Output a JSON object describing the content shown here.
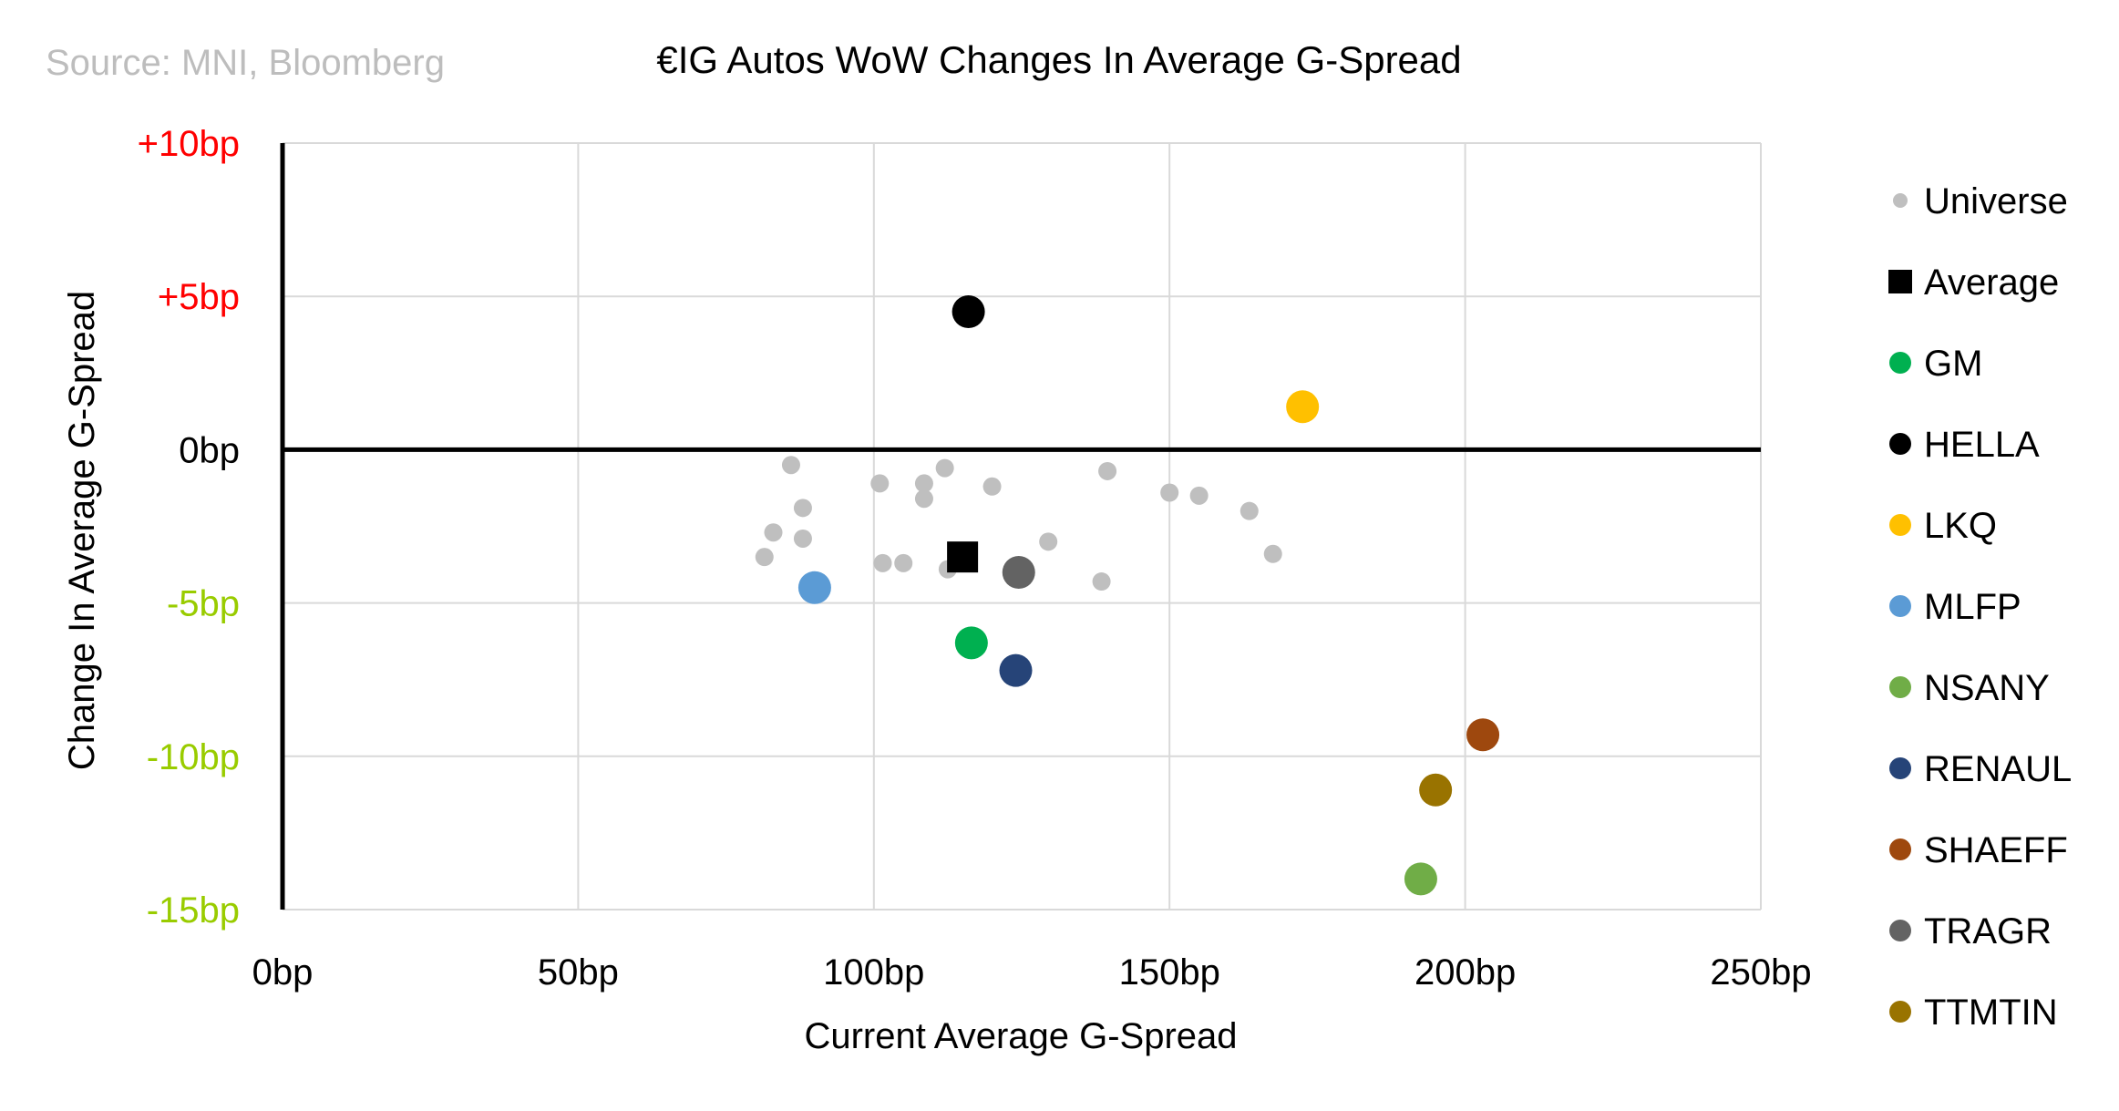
{
  "source": "Source: MNI, Bloomberg",
  "chart_data": {
    "type": "scatter",
    "title": "€IG Autos WoW Changes In Average G-Spread",
    "xlabel": "Current Average G-Spread",
    "ylabel": "Change In Average G-Spread",
    "xlim": [
      0,
      250
    ],
    "ylim": [
      -15,
      10
    ],
    "x_ticks": [
      {
        "value": 0,
        "label": "0bp"
      },
      {
        "value": 50,
        "label": "50bp"
      },
      {
        "value": 100,
        "label": "100bp"
      },
      {
        "value": 150,
        "label": "150bp"
      },
      {
        "value": 200,
        "label": "200bp"
      },
      {
        "value": 250,
        "label": "250bp"
      }
    ],
    "y_ticks": [
      {
        "value": 10,
        "label": "+10bp",
        "color": "#ff0000"
      },
      {
        "value": 5,
        "label": "+5bp",
        "color": "#ff0000"
      },
      {
        "value": 0,
        "label": "0bp",
        "color": "#000000"
      },
      {
        "value": -5,
        "label": "-5bp",
        "color": "#99cc00"
      },
      {
        "value": -10,
        "label": "-10bp",
        "color": "#99cc00"
      },
      {
        "value": -15,
        "label": "-15bp",
        "color": "#99cc00"
      }
    ],
    "grid": true,
    "legend_position": "right",
    "series": [
      {
        "name": "Universe",
        "color": "#bfbfbf",
        "marker": "small-circle",
        "points": [
          [
            86,
            -0.5
          ],
          [
            88,
            -1.9
          ],
          [
            83,
            -2.7
          ],
          [
            88,
            -2.9
          ],
          [
            81.5,
            -3.5
          ],
          [
            101,
            -1.1
          ],
          [
            108.5,
            -1.1
          ],
          [
            108.5,
            -1.6
          ],
          [
            112,
            -0.6
          ],
          [
            120,
            -1.2
          ],
          [
            101.5,
            -3.7
          ],
          [
            105,
            -3.7
          ],
          [
            112.5,
            -3.9
          ],
          [
            129.5,
            -3.0
          ],
          [
            139.5,
            -0.7
          ],
          [
            138.5,
            -4.3
          ],
          [
            150,
            -1.4
          ],
          [
            155,
            -1.5
          ],
          [
            163.5,
            -2.0
          ],
          [
            167.5,
            -3.4
          ]
        ]
      },
      {
        "name": "Average",
        "color": "#000000",
        "marker": "square",
        "points": [
          [
            115,
            -3.5
          ]
        ]
      },
      {
        "name": "GM",
        "color": "#00b050",
        "marker": "circle",
        "points": [
          [
            116.5,
            -6.3
          ]
        ]
      },
      {
        "name": "HELLA",
        "color": "#000000",
        "marker": "circle",
        "points": [
          [
            116,
            4.5
          ]
        ]
      },
      {
        "name": "LKQ",
        "color": "#ffc000",
        "marker": "circle",
        "points": [
          [
            172.5,
            1.4
          ]
        ]
      },
      {
        "name": "MLFP",
        "color": "#5b9bd5",
        "marker": "circle",
        "points": [
          [
            90,
            -4.5
          ]
        ]
      },
      {
        "name": "NSANY",
        "color": "#70ad47",
        "marker": "circle",
        "points": [
          [
            192.5,
            -14.0
          ]
        ]
      },
      {
        "name": "RENAUL",
        "color": "#264478",
        "marker": "circle",
        "points": [
          [
            124,
            -7.2
          ]
        ]
      },
      {
        "name": "SHAEFF",
        "color": "#9e480e",
        "marker": "circle",
        "points": [
          [
            203,
            -9.3
          ]
        ]
      },
      {
        "name": "TRAGR",
        "color": "#636363",
        "marker": "circle",
        "points": [
          [
            124.5,
            -4.0
          ]
        ]
      },
      {
        "name": "TTMTIN",
        "color": "#997300",
        "marker": "circle",
        "points": [
          [
            195,
            -11.1
          ]
        ]
      }
    ]
  }
}
